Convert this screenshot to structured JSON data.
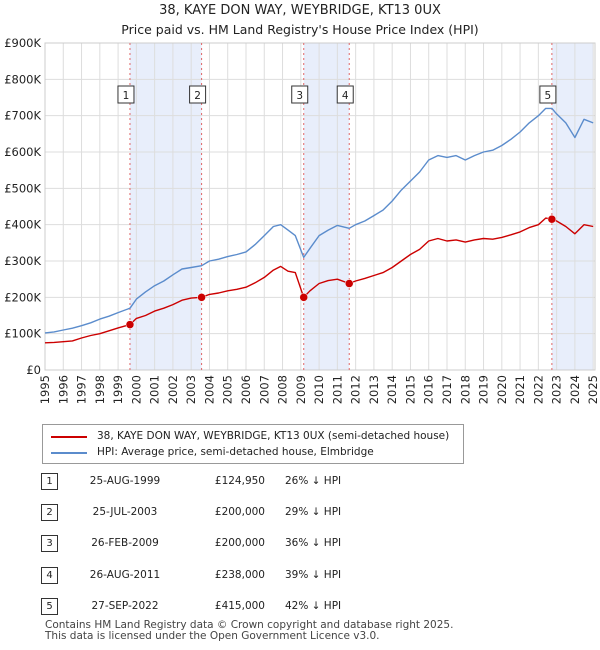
{
  "chart_data": {
    "type": "line",
    "title": "38, KAYE DON WAY, WEYBRIDGE, KT13 0UX",
    "subtitle": "Price paid vs. HM Land Registry's House Price Index (HPI)",
    "xlim": [
      1995,
      2025.1
    ],
    "ylim": [
      0,
      900000
    ],
    "y_ticks": [
      0,
      100000,
      200000,
      300000,
      400000,
      500000,
      600000,
      700000,
      800000,
      900000
    ],
    "y_tick_labels": [
      "£0",
      "£100K",
      "£200K",
      "£300K",
      "£400K",
      "£500K",
      "£600K",
      "£700K",
      "£800K",
      "£900K"
    ],
    "x_ticks": [
      1995,
      1996,
      1997,
      1998,
      1999,
      2000,
      2001,
      2002,
      2003,
      2004,
      2005,
      2006,
      2007,
      2008,
      2009,
      2010,
      2011,
      2012,
      2013,
      2014,
      2015,
      2016,
      2017,
      2018,
      2019,
      2020,
      2021,
      2022,
      2023,
      2024,
      2025
    ],
    "grid": true,
    "shaded_ranges": [
      [
        1999.65,
        2003.57
      ],
      [
        2009.16,
        2011.65
      ],
      [
        2022.74,
        2025.0
      ]
    ],
    "series": [
      {
        "name": "38, KAYE DON WAY, WEYBRIDGE, KT13 0UX (semi-detached house)",
        "color": "#cc0000",
        "x": [
          1995.0,
          1995.5,
          1996.0,
          1996.5,
          1997.0,
          1997.5,
          1998.0,
          1998.5,
          1999.0,
          1999.65,
          2000.0,
          2000.5,
          2001.0,
          2001.5,
          2002.0,
          2002.5,
          2003.0,
          2003.57,
          2004.0,
          2004.5,
          2005.0,
          2005.5,
          2006.0,
          2006.5,
          2007.0,
          2007.5,
          2007.9,
          2008.3,
          2008.7,
          2009.16,
          2009.5,
          2010.0,
          2010.5,
          2011.0,
          2011.65,
          2012.0,
          2012.5,
          2013.0,
          2013.5,
          2014.0,
          2014.5,
          2015.0,
          2015.5,
          2016.0,
          2016.5,
          2017.0,
          2017.5,
          2018.0,
          2018.5,
          2019.0,
          2019.5,
          2020.0,
          2020.5,
          2021.0,
          2021.5,
          2022.0,
          2022.4,
          2022.74,
          2023.0,
          2023.5,
          2024.0,
          2024.5,
          2025.0
        ],
        "values": [
          75000,
          76000,
          78000,
          80000,
          88000,
          95000,
          100000,
          108000,
          116000,
          124950,
          142000,
          150000,
          162000,
          170000,
          180000,
          192000,
          198000,
          200000,
          208000,
          212000,
          218000,
          222000,
          228000,
          240000,
          255000,
          275000,
          285000,
          272000,
          268000,
          200000,
          218000,
          238000,
          246000,
          250000,
          238000,
          245000,
          252000,
          260000,
          268000,
          282000,
          300000,
          318000,
          332000,
          355000,
          362000,
          355000,
          358000,
          352000,
          358000,
          362000,
          360000,
          365000,
          372000,
          380000,
          392000,
          400000,
          418000,
          415000,
          410000,
          395000,
          375000,
          400000,
          395000
        ]
      },
      {
        "name": "HPI: Average price, semi-detached house, Elmbridge",
        "color": "#5b8ccc",
        "x": [
          1995.0,
          1995.5,
          1996.0,
          1996.5,
          1997.0,
          1997.5,
          1998.0,
          1998.5,
          1999.0,
          1999.65,
          2000.0,
          2000.5,
          2001.0,
          2001.5,
          2002.0,
          2002.5,
          2003.0,
          2003.57,
          2004.0,
          2004.5,
          2005.0,
          2005.5,
          2006.0,
          2006.5,
          2007.0,
          2007.5,
          2007.9,
          2008.3,
          2008.7,
          2009.16,
          2009.5,
          2010.0,
          2010.5,
          2011.0,
          2011.65,
          2012.0,
          2012.5,
          2013.0,
          2013.5,
          2014.0,
          2014.5,
          2015.0,
          2015.5,
          2016.0,
          2016.5,
          2017.0,
          2017.5,
          2018.0,
          2018.5,
          2019.0,
          2019.5,
          2020.0,
          2020.5,
          2021.0,
          2021.5,
          2022.0,
          2022.4,
          2022.74,
          2023.0,
          2023.5,
          2024.0,
          2024.5,
          2025.0
        ],
        "values": [
          102000,
          105000,
          110000,
          115000,
          122000,
          130000,
          140000,
          148000,
          158000,
          170000,
          195000,
          215000,
          232000,
          245000,
          262000,
          278000,
          282000,
          287000,
          300000,
          305000,
          312000,
          318000,
          325000,
          345000,
          370000,
          395000,
          400000,
          385000,
          370000,
          310000,
          335000,
          370000,
          385000,
          398000,
          390000,
          400000,
          410000,
          425000,
          440000,
          465000,
          495000,
          520000,
          545000,
          578000,
          590000,
          585000,
          590000,
          578000,
          590000,
          600000,
          605000,
          618000,
          635000,
          655000,
          680000,
          700000,
          720000,
          720000,
          705000,
          680000,
          640000,
          690000,
          680000
        ]
      }
    ],
    "sales": [
      {
        "num": "1",
        "year": 1999.65,
        "price": 124950
      },
      {
        "num": "2",
        "year": 2003.57,
        "price": 200000
      },
      {
        "num": "3",
        "year": 2009.16,
        "price": 200000
      },
      {
        "num": "4",
        "year": 2011.65,
        "price": 238000
      },
      {
        "num": "5",
        "year": 2022.74,
        "price": 415000
      }
    ]
  },
  "legend": [
    {
      "label": "38, KAYE DON WAY, WEYBRIDGE, KT13 0UX (semi-detached house)",
      "color": "#cc0000"
    },
    {
      "label": "HPI: Average price, semi-detached house, Elmbridge",
      "color": "#5b8ccc"
    }
  ],
  "table": [
    {
      "num": "1",
      "date": "25-AUG-1999",
      "price": "£124,950",
      "hpi": "26% ↓ HPI"
    },
    {
      "num": "2",
      "date": "25-JUL-2003",
      "price": "£200,000",
      "hpi": "29% ↓ HPI"
    },
    {
      "num": "3",
      "date": "26-FEB-2009",
      "price": "£200,000",
      "hpi": "36% ↓ HPI"
    },
    {
      "num": "4",
      "date": "26-AUG-2011",
      "price": "£238,000",
      "hpi": "39% ↓ HPI"
    },
    {
      "num": "5",
      "date": "27-SEP-2022",
      "price": "£415,000",
      "hpi": "42% ↓ HPI"
    }
  ],
  "footer": {
    "line1": "Contains HM Land Registry data © Crown copyright and database right 2025.",
    "line2": "This data is licensed under the Open Government Licence v3.0."
  }
}
